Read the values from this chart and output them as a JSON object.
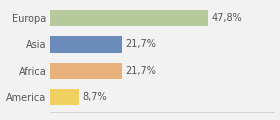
{
  "categories": [
    "Europa",
    "Asia",
    "Africa",
    "America"
  ],
  "values": [
    47.8,
    21.7,
    21.7,
    8.7
  ],
  "labels": [
    "47,8%",
    "21,7%",
    "21,7%",
    "8,7%"
  ],
  "bar_colors": [
    "#b5c99a",
    "#6b8cba",
    "#e8b07a",
    "#f0d060"
  ],
  "background_color": "#f2f2f2",
  "xlim": [
    0,
    68
  ],
  "bar_height": 0.62,
  "label_fontsize": 7.0,
  "category_fontsize": 7.0,
  "figsize": [
    2.8,
    1.2
  ],
  "dpi": 100
}
